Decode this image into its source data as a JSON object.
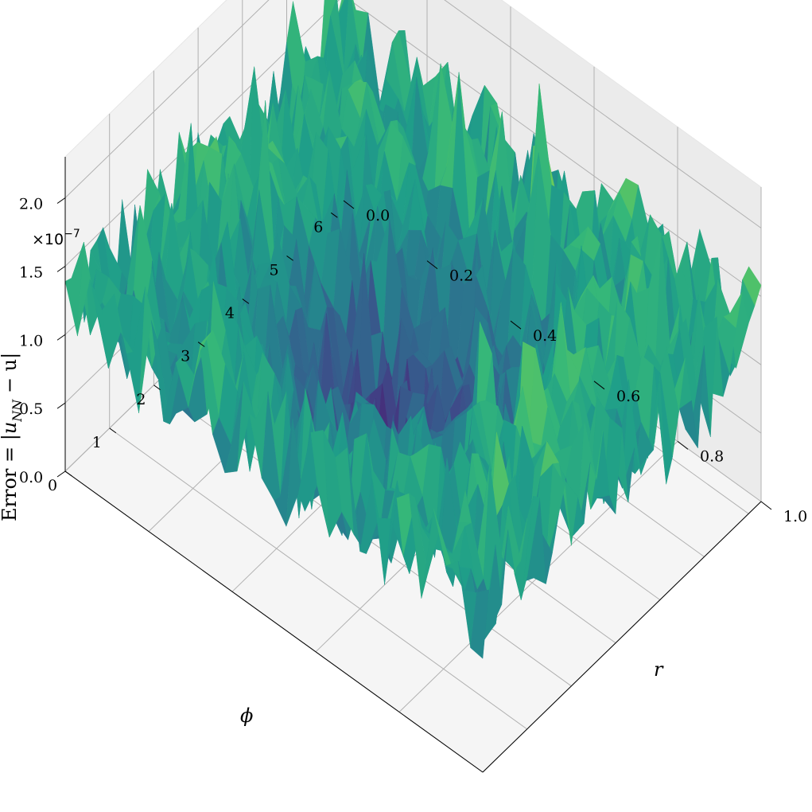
{
  "chart_data": {
    "type": "surface",
    "colormap": "viridis",
    "xlabel": "r",
    "ylabel": "ϕ",
    "zlabel_prefix": "Error = |",
    "zlabel_sub": "NN",
    "zlabel_rest": " − u|",
    "offset_text": "×10",
    "offset_exponent": "−7",
    "x_ticks": [
      "0.0",
      "0.2",
      "0.4",
      "0.6",
      "0.8",
      "1.0"
    ],
    "x_tick_values": [
      0.0,
      0.2,
      0.4,
      0.6,
      0.8,
      1.0
    ],
    "y_ticks": [
      "0",
      "1",
      "2",
      "3",
      "4",
      "5",
      "6"
    ],
    "y_tick_values": [
      0,
      1,
      2,
      3,
      4,
      5,
      6
    ],
    "z_ticks": [
      "0.0",
      "0.5",
      "1.0",
      "1.5",
      "2.0"
    ],
    "z_tick_values": [
      0.0,
      0.5,
      1.0,
      1.5,
      2.0
    ],
    "xlim": [
      0,
      1
    ],
    "ylim": [
      0,
      6.283
    ],
    "zlim": [
      0,
      2.3
    ],
    "z_scale": 1e-07,
    "grid": true,
    "description_of_values": "Noisy absolute error surface over the unit disk in polar coordinates; values mostly between 0.2 and 2.2 (×1e-7), lowest around r≈0.4–0.6 and ϕ≈1–4.5"
  }
}
